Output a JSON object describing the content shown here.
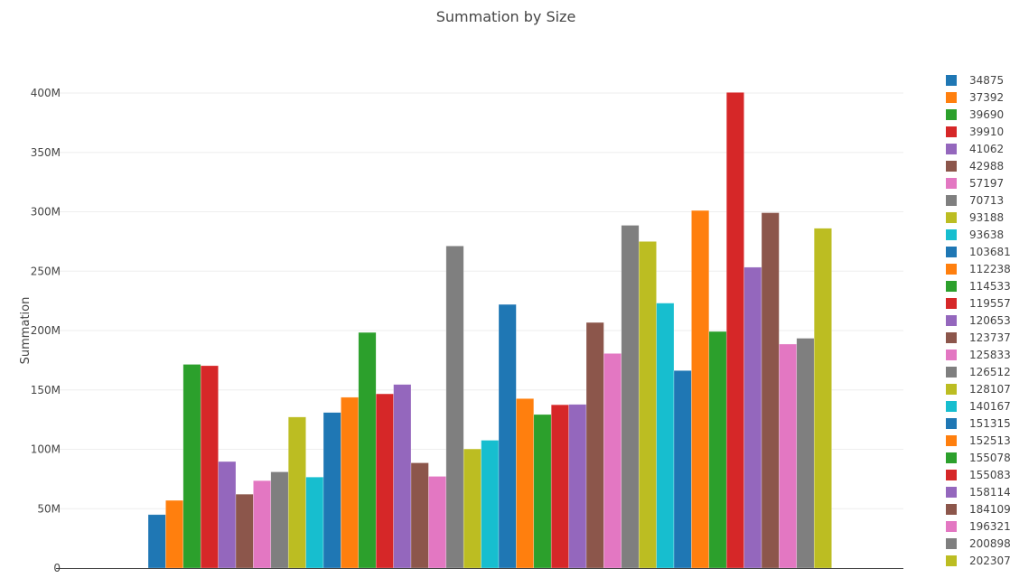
{
  "chart_data": {
    "type": "bar",
    "title": "Summation by Size",
    "xlabel": "",
    "ylabel": "Summation",
    "ylim": [
      0,
      400000000
    ],
    "yticks": [
      0,
      50000000,
      100000000,
      150000000,
      200000000,
      250000000,
      300000000,
      350000000,
      400000000
    ],
    "ytick_labels": [
      "0",
      "50M",
      "100M",
      "150M",
      "200M",
      "250M",
      "300M",
      "350M",
      "400M"
    ],
    "grid": true,
    "legend_placement": "right",
    "palette": [
      "#1f77b4",
      "#ff7f0e",
      "#2ca02c",
      "#d62728",
      "#9467bd",
      "#8c564b",
      "#e377c2",
      "#7f7f7f",
      "#bcbd22",
      "#17becf"
    ],
    "legend_entries": [
      "34875",
      "37392",
      "39690",
      "39910",
      "41062",
      "42988",
      "57197",
      "70713",
      "93188",
      "93638",
      "103681",
      "112238",
      "114533",
      "119557",
      "120653",
      "123737",
      "125833",
      "126512",
      "128107",
      "140167",
      "151315",
      "152513",
      "155078",
      "155083",
      "158114",
      "184109",
      "196321",
      "200898",
      "202307"
    ],
    "values": [
      45000000,
      57000000,
      171500000,
      170400000,
      89700000,
      62200000,
      73600000,
      81000000,
      127200000,
      76600000,
      131000000,
      143800000,
      198400000,
      146700000,
      154600000,
      88600000,
      77200000,
      271200000,
      100300000,
      107600000,
      222000000,
      142700000,
      129300000,
      137500000,
      137800000,
      206800000,
      180700000,
      288600000,
      275000000,
      223100000,
      166300000,
      301100000,
      199200000,
      400500000,
      253300000,
      299200000,
      188600000,
      193500000,
      286100000
    ]
  }
}
